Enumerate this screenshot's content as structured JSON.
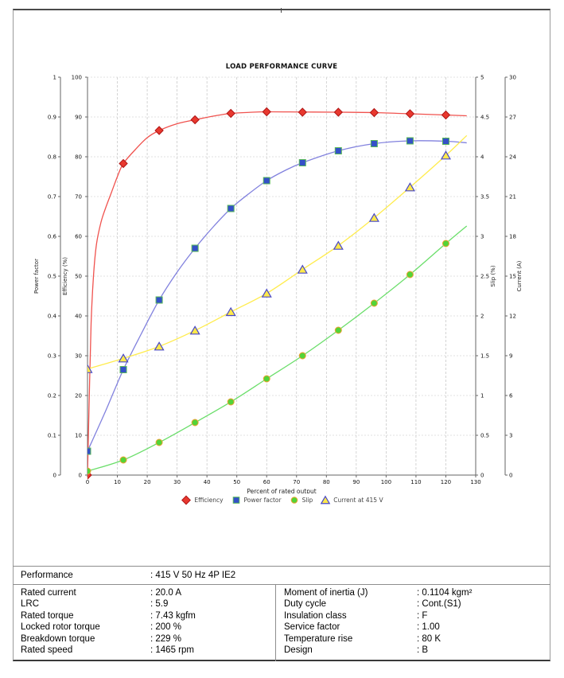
{
  "chart_data": {
    "type": "line",
    "title": "LOAD PERFORMANCE CURVE",
    "xlabel": "Percent of rated output",
    "x_range": [
      0,
      130
    ],
    "x_tick_step": 10,
    "grid": true,
    "legend_position": "bottom",
    "axes": [
      {
        "id": "power_factor",
        "label": "Power factor",
        "range": [
          0,
          1
        ],
        "step": 0.1,
        "side": "left"
      },
      {
        "id": "efficiency",
        "label": "Efficiency (%)",
        "range": [
          0,
          100
        ],
        "step": 10,
        "side": "left"
      },
      {
        "id": "slip",
        "label": "Slip (%)",
        "range": [
          0,
          5
        ],
        "step": 0.5,
        "side": "right"
      },
      {
        "id": "current",
        "label": "Current (A)",
        "range": [
          0,
          30
        ],
        "step": 3,
        "side": "right"
      }
    ],
    "marker_x": [
      0,
      12,
      24,
      36,
      48,
      60,
      72,
      84,
      96,
      108,
      120
    ],
    "series": [
      {
        "name": "Efficiency",
        "axis": "efficiency",
        "marker": "diamond",
        "line_color": "#f0524e",
        "marker_fill": "#e8382e",
        "marker_stroke": "#b01515",
        "values": [
          0,
          78.3,
          86.6,
          89.3,
          90.9,
          91.3,
          91.2,
          91.2,
          91.1,
          90.8,
          90.5
        ],
        "line": [
          [
            0,
            0
          ],
          [
            0.6,
            20
          ],
          [
            1.2,
            38
          ],
          [
            2,
            50
          ],
          [
            3,
            58
          ],
          [
            4.5,
            63.5
          ],
          [
            6,
            67
          ],
          [
            8,
            71
          ],
          [
            10,
            75
          ],
          [
            12,
            78.3
          ],
          [
            16,
            81.8
          ],
          [
            20,
            84.8
          ],
          [
            24,
            86.6
          ],
          [
            30,
            88.3
          ],
          [
            36,
            89.3
          ],
          [
            42,
            90.2
          ],
          [
            48,
            90.9
          ],
          [
            54,
            91.15
          ],
          [
            60,
            91.3
          ],
          [
            72,
            91.25
          ],
          [
            84,
            91.2
          ],
          [
            96,
            91.1
          ],
          [
            108,
            90.8
          ],
          [
            120,
            90.5
          ],
          [
            127,
            90.3
          ]
        ]
      },
      {
        "name": "Power factor",
        "axis": "power_factor",
        "marker": "square",
        "line_color": "#8181de",
        "marker_fill": "#3450c8",
        "marker_stroke": "#58b858",
        "values": [
          0.06,
          0.265,
          0.44,
          0.57,
          0.67,
          0.74,
          0.785,
          0.815,
          0.833,
          0.84,
          0.839
        ],
        "line": [
          [
            0,
            0.06
          ],
          [
            6,
            0.16
          ],
          [
            12,
            0.265
          ],
          [
            18,
            0.355
          ],
          [
            24,
            0.44
          ],
          [
            30,
            0.51
          ],
          [
            36,
            0.57
          ],
          [
            42,
            0.623
          ],
          [
            48,
            0.67
          ],
          [
            54,
            0.707
          ],
          [
            60,
            0.74
          ],
          [
            66,
            0.765
          ],
          [
            72,
            0.785
          ],
          [
            84,
            0.815
          ],
          [
            96,
            0.833
          ],
          [
            108,
            0.84
          ],
          [
            120,
            0.839
          ],
          [
            127,
            0.835
          ]
        ]
      },
      {
        "name": "Slip",
        "axis": "slip",
        "marker": "circle",
        "line_color": "#6ade6a",
        "marker_fill": "#52d438",
        "marker_stroke": "#f0a030",
        "values": [
          0.05,
          0.19,
          0.41,
          0.66,
          0.92,
          1.21,
          1.5,
          1.82,
          2.16,
          2.52,
          2.91
        ],
        "line": [
          [
            0,
            0.05
          ],
          [
            12,
            0.19
          ],
          [
            24,
            0.41
          ],
          [
            36,
            0.66
          ],
          [
            48,
            0.92
          ],
          [
            60,
            1.21
          ],
          [
            72,
            1.5
          ],
          [
            84,
            1.82
          ],
          [
            96,
            2.16
          ],
          [
            108,
            2.52
          ],
          [
            120,
            2.91
          ],
          [
            127,
            3.13
          ]
        ]
      },
      {
        "name": "Current at 415 V",
        "axis": "current",
        "marker": "triangle",
        "line_color": "#ffec4d",
        "marker_fill": "#ffe94a",
        "marker_stroke": "#4848c8",
        "values": [
          8.0,
          8.8,
          9.7,
          10.9,
          12.3,
          13.7,
          15.5,
          17.3,
          19.4,
          21.7,
          24.1
        ],
        "line": [
          [
            0,
            8.0
          ],
          [
            12,
            8.8
          ],
          [
            24,
            9.7
          ],
          [
            36,
            10.9
          ],
          [
            48,
            12.3
          ],
          [
            60,
            13.7
          ],
          [
            72,
            15.5
          ],
          [
            84,
            17.3
          ],
          [
            96,
            19.4
          ],
          [
            108,
            21.7
          ],
          [
            120,
            24.1
          ],
          [
            127,
            25.6
          ]
        ]
      }
    ]
  },
  "table": {
    "performance": {
      "label": "Performance",
      "value": "415 V 50 Hz 4P IE2"
    },
    "left": [
      {
        "label": "Rated current",
        "value": "20.0 A"
      },
      {
        "label": "LRC",
        "value": "5.9"
      },
      {
        "label": "Rated torque",
        "value": "7.43 kgfm"
      },
      {
        "label": "Locked rotor torque",
        "value": "200 %"
      },
      {
        "label": "Breakdown torque",
        "value": "229 %"
      },
      {
        "label": "Rated speed",
        "value": "1465 rpm"
      }
    ],
    "right": [
      {
        "label": "Moment of inertia (J)",
        "value": "0.1104 kgm²"
      },
      {
        "label": "Duty cycle",
        "value": "Cont.(S1)"
      },
      {
        "label": "Insulation class",
        "value": "F"
      },
      {
        "label": "Service factor",
        "value": "1.00"
      },
      {
        "label": "Temperature rise",
        "value": "80 K"
      },
      {
        "label": "Design",
        "value": "B"
      }
    ]
  }
}
